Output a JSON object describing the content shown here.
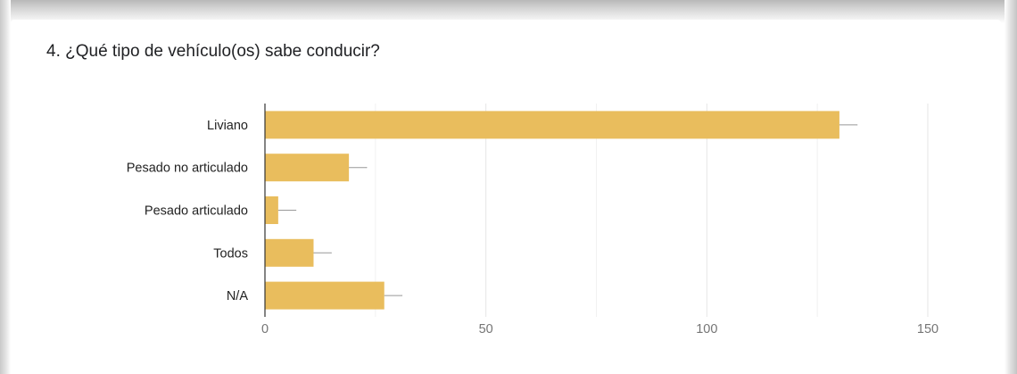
{
  "question": {
    "title": "4. ¿Qué tipo de vehículo(os) sabe conducir?"
  },
  "colors": {
    "bar": "#e9bd5d",
    "grid": "#e6e6e6",
    "baseline": "#333333",
    "label": "#222222",
    "tick": "#757575",
    "error_bar": "#999999"
  },
  "chart_data": {
    "type": "bar",
    "orientation": "horizontal",
    "categories": [
      "Liviano",
      "Pesado no articulado",
      "Pesado articulado",
      "Todos",
      "N/A"
    ],
    "values": [
      130,
      19,
      3,
      11,
      27
    ],
    "error_bar_upper": [
      134,
      23,
      7,
      15,
      31
    ],
    "x_ticks": [
      "0",
      "50",
      "100",
      "150"
    ],
    "xlim": [
      0,
      150
    ],
    "title": "",
    "xlabel": "",
    "ylabel": "",
    "grid": true,
    "legend": "none"
  }
}
